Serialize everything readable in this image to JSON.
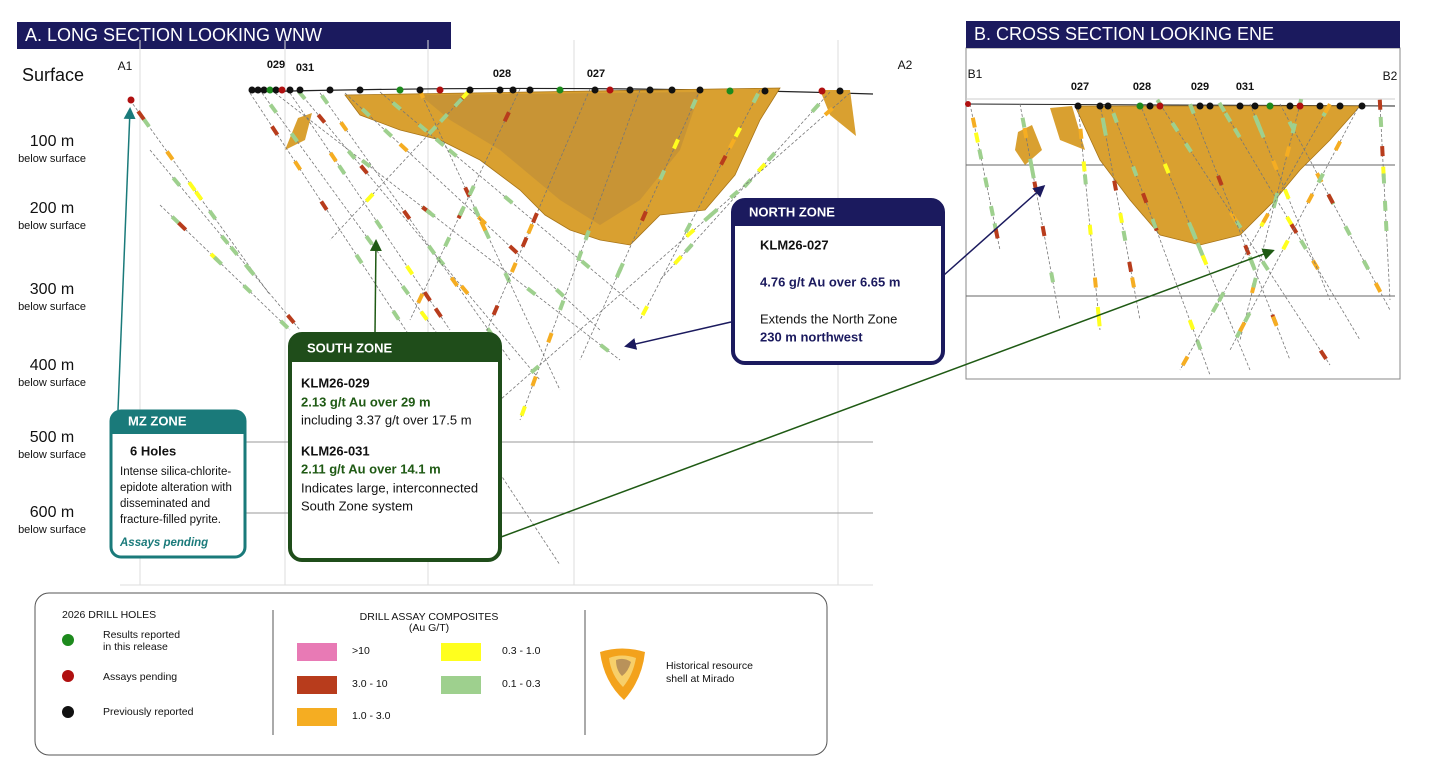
{
  "panel_a": {
    "title": "A. LONG SECTION LOOKING WNW",
    "surface_label": "Surface",
    "end_labels": [
      "A1",
      "A2"
    ],
    "depths": [
      {
        "depth": "100 m",
        "sub": "below surface"
      },
      {
        "depth": "200 m",
        "sub": "below surface"
      },
      {
        "depth": "300 m",
        "sub": "below surface"
      },
      {
        "depth": "400 m",
        "sub": "below surface"
      },
      {
        "depth": "500 m",
        "sub": "below surface"
      },
      {
        "depth": "600 m",
        "sub": "below surface"
      }
    ],
    "holes": [
      "029",
      "031",
      "028",
      "027"
    ]
  },
  "north_zone": {
    "title": "NORTH ZONE",
    "hole": "KLM26-027",
    "result": "4.76 g/t Au over 6.65 m",
    "note": "Extends the North Zone",
    "note_bold": "230 m northwest"
  },
  "south_zone": {
    "title": "SOUTH ZONE",
    "holes": [
      {
        "id": "KLM26-029",
        "result": "2.13 g/t Au over 29 m",
        "detail": [
          "including 3.37 g/t over 17.5 m"
        ]
      },
      {
        "id": "KLM26-031",
        "result": "2.11 g/t Au over 14.1 m",
        "detail": [
          "Indicates large, interconnected",
          "South Zone system"
        ]
      }
    ]
  },
  "mz_zone": {
    "title": "MZ ZONE",
    "count": "6 Holes",
    "description": [
      "Intense silica-chlorite-",
      "epidote alteration with",
      "disseminated and",
      "fracture-filled pyrite."
    ],
    "status": "Assays pending"
  },
  "panel_b": {
    "title": "B. CROSS SECTION LOOKING ENE",
    "end_labels": [
      "B1",
      "B2"
    ],
    "holes": [
      "027",
      "028",
      "029",
      "031"
    ]
  },
  "legend": {
    "drill_holes": {
      "title": "2026 DRILL HOLES",
      "items": [
        [
          "Results reported",
          "in this release"
        ],
        [
          "Assays pending"
        ],
        [
          "Previously reported"
        ]
      ]
    },
    "assays": {
      "title": "DRILL ASSAY COMPOSITES",
      "subtitle": "(Au G/T)",
      "items": [
        ">10",
        "3.0 - 10",
        "1.0 - 3.0",
        "0.3 - 1.0",
        "0.1 - 0.3"
      ]
    },
    "shell": [
      "Historical resource",
      "shell at Mirado"
    ]
  }
}
